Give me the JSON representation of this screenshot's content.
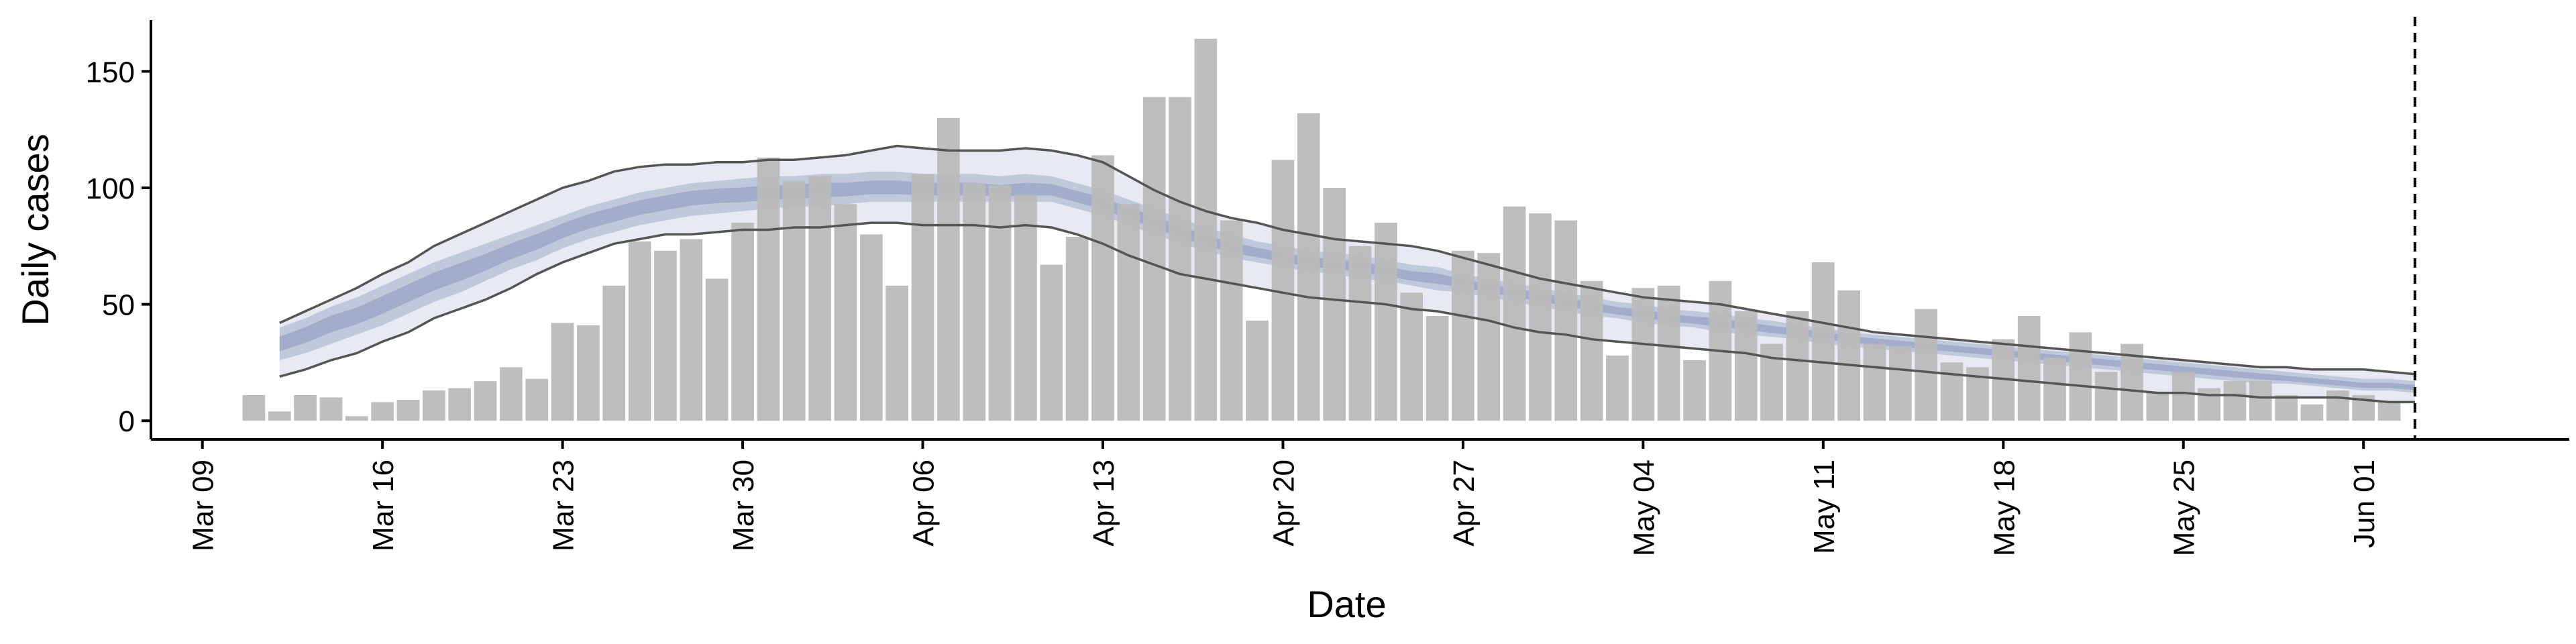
{
  "chart_data": {
    "type": "bar",
    "xlabel": "Date",
    "ylabel": "Daily cases",
    "ylim": [
      -8,
      172
    ],
    "yticks": [
      0,
      50,
      100,
      150
    ],
    "x_tick_labels": [
      "Mar 09",
      "Mar 16",
      "Mar 23",
      "Mar 30",
      "Apr 06",
      "Apr 13",
      "Apr 20",
      "Apr 27",
      "May 04",
      "May 11",
      "May 18",
      "May 25",
      "Jun 01"
    ],
    "x_ticks": [
      "2020-03-09",
      "2020-03-16",
      "2020-03-23",
      "2020-03-30",
      "2020-04-06",
      "2020-04-13",
      "2020-04-20",
      "2020-04-27",
      "2020-05-04",
      "2020-05-11",
      "2020-05-18",
      "2020-05-25",
      "2020-06-01"
    ],
    "xlim": [
      "2020-03-07",
      "2020-06-09"
    ],
    "vline_date": "2020-06-03",
    "bars": {
      "start_date": "2020-03-11",
      "values": [
        11,
        4,
        11,
        10,
        2,
        8,
        9,
        13,
        14,
        17,
        23,
        18,
        42,
        41,
        58,
        77,
        73,
        78,
        61,
        85,
        113,
        103,
        105,
        93,
        80,
        58,
        106,
        130,
        102,
        101,
        97,
        67,
        79,
        114,
        93,
        139,
        139,
        164,
        86,
        43,
        112,
        132,
        100,
        75,
        85,
        55,
        45,
        73,
        72,
        92,
        89,
        86,
        60,
        28,
        57,
        58,
        26,
        60,
        47,
        33,
        47,
        68,
        56,
        33,
        32,
        48,
        25,
        23,
        35,
        45,
        27,
        38,
        21,
        33,
        12,
        21,
        14,
        17,
        17,
        11,
        7,
        13,
        11,
        8
      ],
      "color": "#bbbbbb"
    },
    "estimate": {
      "start_date": "2020-03-12",
      "median": [
        33,
        37,
        42,
        45,
        50,
        55,
        60,
        64,
        68,
        73,
        77,
        82,
        86,
        89,
        92,
        94,
        96,
        97,
        97,
        98,
        98,
        99,
        99,
        100,
        100,
        99,
        99,
        99,
        98,
        99,
        99,
        96,
        93,
        89,
        85,
        81,
        77,
        74,
        72,
        70,
        68,
        67,
        66,
        64,
        62,
        61,
        59,
        57,
        55,
        53,
        51,
        49,
        47,
        46,
        44,
        43,
        42,
        41,
        39,
        38,
        37,
        35,
        34,
        33,
        32,
        31,
        30,
        29,
        28,
        27,
        26,
        25,
        24,
        23,
        22,
        21,
        20,
        19,
        18,
        17,
        16,
        15,
        15,
        14
      ],
      "inner_lower": [
        26,
        29,
        33,
        37,
        41,
        46,
        51,
        55,
        60,
        65,
        69,
        74,
        78,
        81,
        84,
        86,
        88,
        89,
        90,
        91,
        92,
        92,
        93,
        94,
        94,
        94,
        94,
        94,
        94,
        94,
        94,
        91,
        88,
        84,
        80,
        76,
        73,
        70,
        68,
        66,
        64,
        63,
        61,
        60,
        58,
        56,
        55,
        53,
        51,
        49,
        47,
        45,
        44,
        42,
        41,
        40,
        38,
        37,
        36,
        35,
        33,
        32,
        31,
        30,
        29,
        28,
        27,
        26,
        25,
        24,
        23,
        22,
        21,
        20,
        19,
        18,
        17,
        16,
        16,
        15,
        14,
        13,
        13,
        12
      ],
      "inner_upper": [
        40,
        44,
        49,
        53,
        58,
        63,
        68,
        72,
        76,
        80,
        84,
        88,
        92,
        95,
        98,
        100,
        102,
        103,
        104,
        105,
        105,
        106,
        106,
        107,
        107,
        106,
        106,
        106,
        105,
        106,
        105,
        102,
        99,
        95,
        91,
        87,
        83,
        80,
        77,
        75,
        73,
        72,
        71,
        69,
        67,
        66,
        63,
        61,
        59,
        57,
        55,
        53,
        51,
        50,
        48,
        47,
        46,
        44,
        43,
        41,
        40,
        38,
        37,
        36,
        35,
        34,
        33,
        32,
        31,
        30,
        29,
        28,
        27,
        26,
        25,
        24,
        23,
        22,
        21,
        20,
        19,
        18,
        18,
        17
      ],
      "outer_lower": [
        19,
        22,
        26,
        29,
        34,
        38,
        44,
        48,
        52,
        57,
        63,
        68,
        72,
        76,
        78,
        80,
        80,
        81,
        82,
        82,
        83,
        83,
        84,
        85,
        85,
        84,
        84,
        84,
        83,
        84,
        83,
        80,
        76,
        71,
        67,
        63,
        61,
        59,
        57,
        55,
        53,
        52,
        51,
        50,
        48,
        47,
        45,
        43,
        40,
        38,
        37,
        35,
        34,
        33,
        32,
        31,
        30,
        29,
        27,
        26,
        25,
        24,
        23,
        22,
        21,
        20,
        19,
        18,
        17,
        16,
        15,
        14,
        13,
        12,
        12,
        11,
        11,
        10,
        10,
        10,
        10,
        9,
        8,
        8
      ],
      "outer_upper": [
        42,
        47,
        52,
        57,
        63,
        68,
        75,
        80,
        85,
        90,
        95,
        100,
        103,
        107,
        109,
        110,
        110,
        111,
        111,
        112,
        112,
        113,
        114,
        116,
        118,
        117,
        116,
        116,
        116,
        117,
        116,
        114,
        111,
        105,
        99,
        94,
        90,
        87,
        85,
        82,
        80,
        78,
        77,
        76,
        75,
        73,
        70,
        67,
        64,
        61,
        59,
        57,
        55,
        53,
        52,
        51,
        50,
        48,
        46,
        44,
        42,
        40,
        38,
        37,
        36,
        35,
        34,
        33,
        32,
        31,
        30,
        29,
        28,
        27,
        26,
        25,
        24,
        23,
        23,
        22,
        22,
        22,
        21,
        20
      ]
    },
    "colors": {
      "bar": "#bbbbbb",
      "band_outer": "#e6e8f2",
      "band_inner": "#b3bcd4",
      "band_core": "#8e9bbf",
      "envelope_line": "#555555",
      "axis": "#000000"
    },
    "grid": false,
    "legend": "none"
  }
}
